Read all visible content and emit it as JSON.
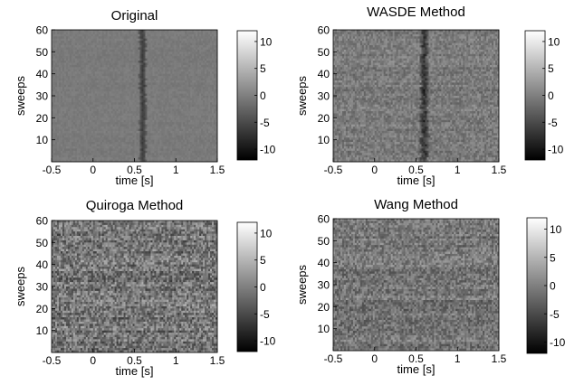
{
  "figure": {
    "background": "#ffffff"
  },
  "chart_data": [
    {
      "type": "heatmap",
      "title": "Original",
      "xlabel": "time [s]",
      "ylabel": "sweeps",
      "xlim": [
        -0.5,
        1.5
      ],
      "ylim": [
        0,
        60
      ],
      "xticks": [
        "-0.5",
        "0",
        "0.5",
        "1",
        "1.5"
      ],
      "yticks": [
        "10",
        "20",
        "30",
        "40",
        "50",
        "60"
      ],
      "colorbar": {
        "ticks": [
          "10",
          "5",
          "0",
          "-5",
          "-10"
        ],
        "range": [
          -12,
          12
        ],
        "colormap": "gray"
      },
      "grid": false,
      "background_level": -0.5,
      "noise_level": 0.6,
      "feature": {
        "type": "vertical-band",
        "time": 0.6,
        "width_s": 0.08,
        "level": -6,
        "wiggle": 0.012
      }
    },
    {
      "type": "heatmap",
      "title": "WASDE Method",
      "xlabel": "time [s]",
      "ylabel": "sweeps",
      "xlim": [
        -0.5,
        1.5
      ],
      "ylim": [
        0,
        60
      ],
      "xticks": [
        "-0.5",
        "0",
        "0.5",
        "1",
        "1.5"
      ],
      "yticks": [
        "10",
        "20",
        "30",
        "40",
        "50",
        "60"
      ],
      "colorbar": {
        "ticks": [
          "10",
          "5",
          "0",
          "-5",
          "-10"
        ],
        "range": [
          -12,
          12
        ],
        "colormap": "gray"
      },
      "grid": false,
      "background_level": -0.5,
      "noise_level": 2.2,
      "feature": {
        "type": "vertical-band",
        "time": 0.6,
        "width_s": 0.1,
        "level": -7,
        "wiggle": 0.015
      }
    },
    {
      "type": "heatmap",
      "title": "Quiroga Method",
      "xlabel": "time [s]",
      "ylabel": "sweeps",
      "xlim": [
        -0.5,
        1.5
      ],
      "ylim": [
        0,
        60
      ],
      "xticks": [
        "-0.5",
        "0",
        "0.5",
        "1",
        "1.5"
      ],
      "yticks": [
        "10",
        "20",
        "30",
        "40",
        "50",
        "60"
      ],
      "colorbar": {
        "ticks": [
          "10",
          "5",
          "0",
          "-5",
          "-10"
        ],
        "range": [
          -12,
          12
        ],
        "colormap": "gray"
      },
      "grid": false,
      "background_level": -1,
      "noise_level": 4.5,
      "feature": null
    },
    {
      "type": "heatmap",
      "title": "Wang Method",
      "xlabel": "time [s]",
      "ylabel": "sweeps",
      "xlim": [
        -0.5,
        1.5
      ],
      "ylim": [
        0,
        60
      ],
      "xticks": [
        "-0.5",
        "0",
        "0.5",
        "1",
        "1.5"
      ],
      "yticks": [
        "10",
        "20",
        "30",
        "40",
        "50",
        "60"
      ],
      "colorbar": {
        "ticks": [
          "10",
          "5",
          "0",
          "-5",
          "-10"
        ],
        "range": [
          -12,
          12
        ],
        "colormap": "gray"
      },
      "grid": false,
      "background_level": -1,
      "noise_level": 3.2,
      "feature": null
    }
  ]
}
